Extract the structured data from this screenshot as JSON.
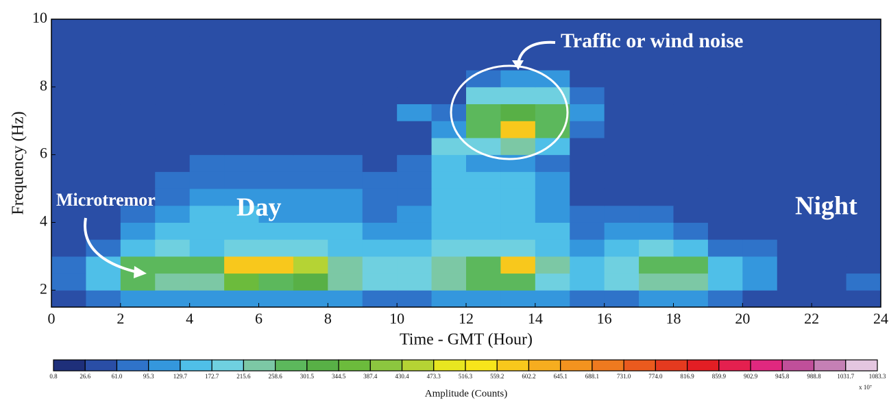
{
  "chart_data": {
    "type": "heatmap",
    "xlabel": "Time - GMT (Hour)",
    "ylabel": "Frequency (Hz)",
    "xlim": [
      0,
      24
    ],
    "ylim": [
      1.5,
      10
    ],
    "xticks": [
      0,
      2,
      4,
      6,
      8,
      10,
      12,
      14,
      16,
      18,
      20,
      22,
      24
    ],
    "yticks": [
      2,
      4,
      6,
      8,
      10
    ],
    "x_bins": [
      0,
      1,
      2,
      3,
      4,
      5,
      6,
      7,
      8,
      9,
      10,
      11,
      12,
      13,
      14,
      15,
      16,
      17,
      18,
      19,
      20,
      21,
      22,
      23,
      24
    ],
    "y_bins": [
      1.5,
      2,
      2.5,
      3,
      3.5,
      4,
      4.5,
      5,
      5.5,
      6,
      6.5,
      7,
      7.5,
      8,
      8.5,
      9,
      9.5,
      10
    ],
    "values": [
      [
        60,
        90,
        110,
        100,
        100,
        120,
        120,
        120,
        100,
        90,
        90,
        110,
        110,
        110,
        100,
        90,
        90,
        100,
        100,
        70,
        60,
        45,
        45,
        50
      ],
      [
        90,
        160,
        260,
        240,
        230,
        350,
        300,
        330,
        220,
        180,
        190,
        230,
        260,
        280,
        210,
        160,
        190,
        230,
        230,
        130,
        100,
        55,
        50,
        70
      ],
      [
        70,
        140,
        280,
        290,
        260,
        560,
        580,
        440,
        230,
        190,
        200,
        250,
        290,
        600,
        240,
        170,
        200,
        260,
        300,
        140,
        110,
        55,
        50,
        60
      ],
      [
        50,
        90,
        150,
        180,
        170,
        200,
        180,
        200,
        160,
        140,
        150,
        180,
        190,
        200,
        160,
        120,
        140,
        180,
        170,
        90,
        70,
        45,
        42,
        45
      ],
      [
        42,
        60,
        110,
        130,
        140,
        150,
        140,
        150,
        130,
        110,
        120,
        170,
        160,
        160,
        130,
        90,
        100,
        110,
        90,
        60,
        55,
        42,
        40,
        42
      ],
      [
        40,
        50,
        80,
        110,
        130,
        140,
        120,
        120,
        110,
        90,
        100,
        160,
        150,
        150,
        120,
        70,
        70,
        80,
        60,
        50,
        45,
        40,
        40,
        40
      ],
      [
        40,
        45,
        60,
        90,
        110,
        120,
        110,
        110,
        100,
        80,
        90,
        160,
        150,
        160,
        120,
        60,
        55,
        55,
        50,
        45,
        42,
        40,
        40,
        40
      ],
      [
        40,
        42,
        55,
        70,
        90,
        90,
        90,
        90,
        80,
        70,
        80,
        150,
        130,
        140,
        100,
        55,
        50,
        45,
        42,
        40,
        40,
        40,
        40,
        40
      ],
      [
        40,
        40,
        45,
        60,
        70,
        70,
        70,
        70,
        65,
        60,
        70,
        160,
        110,
        120,
        90,
        50,
        45,
        42,
        40,
        40,
        40,
        40,
        40,
        40
      ],
      [
        40,
        40,
        42,
        50,
        55,
        55,
        60,
        60,
        55,
        55,
        60,
        200,
        200,
        220,
        160,
        60,
        42,
        40,
        40,
        40,
        40,
        40,
        40,
        40
      ],
      [
        40,
        40,
        40,
        45,
        50,
        50,
        55,
        55,
        50,
        50,
        60,
        110,
        300,
        600,
        280,
        80,
        40,
        40,
        40,
        40,
        40,
        40,
        40,
        40
      ],
      [
        40,
        40,
        40,
        42,
        45,
        45,
        50,
        50,
        50,
        50,
        120,
        80,
        280,
        330,
        300,
        100,
        40,
        40,
        40,
        40,
        40,
        40,
        40,
        40
      ],
      [
        40,
        40,
        40,
        40,
        42,
        42,
        45,
        45,
        45,
        45,
        60,
        60,
        180,
        200,
        190,
        70,
        40,
        40,
        40,
        40,
        40,
        40,
        40,
        40
      ],
      [
        40,
        40,
        40,
        40,
        40,
        40,
        40,
        40,
        40,
        45,
        60,
        55,
        90,
        110,
        100,
        50,
        40,
        40,
        40,
        40,
        40,
        40,
        40,
        40
      ],
      [
        40,
        40,
        40,
        40,
        40,
        40,
        40,
        40,
        40,
        40,
        40,
        50,
        50,
        50,
        50,
        40,
        40,
        40,
        40,
        40,
        40,
        40,
        40,
        40
      ],
      [
        40,
        40,
        40,
        40,
        40,
        40,
        40,
        40,
        40,
        40,
        40,
        40,
        40,
        40,
        40,
        40,
        40,
        40,
        40,
        40,
        40,
        40,
        40,
        40
      ],
      [
        40,
        40,
        40,
        40,
        40,
        40,
        40,
        40,
        40,
        40,
        40,
        40,
        40,
        40,
        40,
        40,
        40,
        40,
        40,
        40,
        40,
        40,
        40,
        40
      ]
    ],
    "annotations": [
      "Traffic or wind noise",
      "Microtremor",
      "Day",
      "Night"
    ],
    "colorbar": {
      "label": "Amplitude (Counts)",
      "multiplier": "x 10⁷",
      "ticks": [
        0.8,
        26.6,
        {
          "value": 61,
          "label": "61.0"
        },
        95.3,
        129.7,
        172.7,
        215.6,
        258.6,
        301.5,
        344.5,
        387.4,
        430.4,
        473.3,
        516.3,
        559.2,
        602.2,
        645.1,
        688.1,
        {
          "value": 731,
          "label": "731.0"
        },
        {
          "value": 774,
          "label": "774.0"
        },
        816.9,
        859.9,
        902.9,
        945.8,
        988.8,
        1031.7,
        1083.3
      ],
      "colors": [
        "#1e2f7a",
        "#2a4ea6",
        "#2f73c9",
        "#3497dd",
        "#4fbfe8",
        "#6fd0e0",
        "#7cc8a5",
        "#5cb85c",
        "#58b046",
        "#6cbb3c",
        "#8cc63f",
        "#b5d334",
        "#e8e620",
        "#f7e51b",
        "#f8c81c",
        "#f6ad1f",
        "#f3931f",
        "#ef7a1f",
        "#ea5a1e",
        "#e53a1f",
        "#e31e24",
        "#e4204f",
        "#e0287f",
        "#c04f9a",
        "#c580b5",
        "#e4c6e0"
      ]
    }
  }
}
